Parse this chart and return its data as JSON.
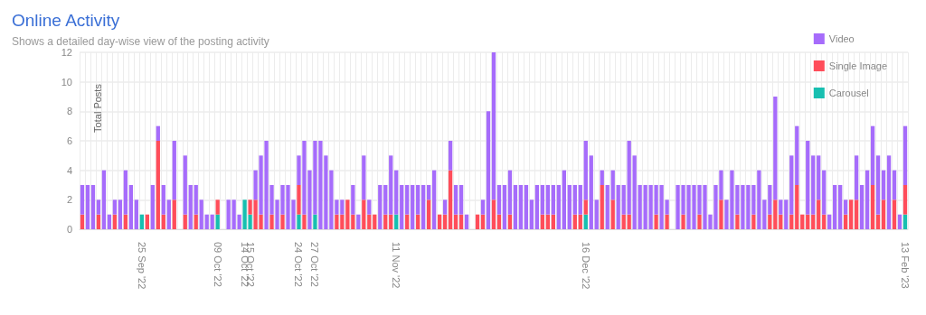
{
  "chart_data": {
    "type": "bar",
    "title": "Online Activity",
    "subtitle": "Shows a detailed day-wise view of the posting activity",
    "ylabel": "Total Posts",
    "stacked": true,
    "categories": [
      null,
      null,
      null,
      null,
      null,
      null,
      null,
      null,
      null,
      null,
      null,
      "25 Sep '22",
      null,
      null,
      null,
      null,
      null,
      null,
      null,
      null,
      null,
      null,
      null,
      null,
      null,
      "09 Oct '22",
      null,
      null,
      null,
      null,
      "14 Oct '22",
      "15 Oct '22",
      null,
      null,
      null,
      null,
      null,
      null,
      null,
      null,
      "24 Oct '22",
      null,
      null,
      "27 Oct '22",
      null,
      null,
      null,
      null,
      null,
      null,
      null,
      null,
      null,
      null,
      null,
      null,
      null,
      null,
      "11 Nov '22",
      null,
      null,
      null,
      null,
      null,
      null,
      null,
      null,
      null,
      null,
      null,
      null,
      null,
      null,
      null,
      null,
      null,
      null,
      null,
      null,
      null,
      null,
      null,
      null,
      null,
      null,
      null,
      null,
      null,
      null,
      null,
      null,
      null,
      null,
      "16 Dec '22",
      null,
      null,
      null,
      null,
      null,
      null,
      null,
      null,
      null,
      null,
      null,
      null,
      null,
      null,
      null,
      null,
      null,
      null,
      null,
      null,
      null,
      null,
      null,
      null,
      null,
      null,
      null,
      null,
      null,
      null,
      null,
      null,
      null,
      null,
      null,
      null,
      null,
      null,
      null,
      null,
      null,
      null,
      null,
      null,
      null,
      null,
      null,
      null,
      null,
      null,
      null,
      null,
      null,
      null,
      null,
      null,
      null,
      null,
      "13 Feb '23"
    ],
    "series": [
      {
        "name": "Carousel",
        "color": "#17bfb0",
        "values": [
          0,
          0,
          0,
          0,
          0,
          0,
          0,
          0,
          0,
          0,
          0,
          1,
          0,
          0,
          0,
          0,
          0,
          0,
          0,
          0,
          0,
          0,
          0,
          0,
          0,
          1,
          0,
          0,
          0,
          0,
          2,
          1,
          0,
          0,
          0,
          0,
          0,
          0,
          0,
          0,
          1,
          0,
          0,
          1,
          0,
          0,
          0,
          0,
          0,
          0,
          0,
          0,
          0,
          0,
          0,
          0,
          0,
          0,
          1,
          0,
          0,
          0,
          0,
          0,
          0,
          0,
          0,
          0,
          0,
          0,
          0,
          0,
          0,
          0,
          0,
          0,
          0,
          0,
          0,
          0,
          0,
          0,
          0,
          0,
          0,
          0,
          0,
          0,
          0,
          0,
          0,
          0,
          0,
          1,
          0,
          0,
          0,
          0,
          0,
          0,
          0,
          0,
          0,
          0,
          0,
          0,
          0,
          0,
          0,
          0,
          0,
          0,
          0,
          0,
          0,
          0,
          0,
          0,
          0,
          0,
          0,
          0,
          0,
          0,
          0,
          0,
          0,
          0,
          0,
          0,
          0,
          0,
          0,
          0,
          0,
          0,
          0,
          0,
          0,
          0,
          0,
          0,
          0,
          0,
          0,
          0,
          0,
          0,
          0,
          0,
          0,
          0,
          1
        ]
      },
      {
        "name": "Single Image",
        "color": "#ff4d5a",
        "values": [
          1,
          0,
          0,
          1,
          0,
          0,
          1,
          0,
          1,
          0,
          0,
          0,
          1,
          0,
          6,
          1,
          0,
          2,
          0,
          1,
          0,
          1,
          0,
          0,
          0,
          1,
          0,
          0,
          0,
          0,
          0,
          1,
          2,
          1,
          0,
          1,
          0,
          1,
          0,
          0,
          2,
          1,
          0,
          0,
          0,
          0,
          0,
          1,
          1,
          2,
          1,
          0,
          2,
          1,
          1,
          0,
          1,
          1,
          0,
          0,
          1,
          0,
          1,
          0,
          2,
          0,
          1,
          1,
          4,
          1,
          1,
          0,
          0,
          1,
          1,
          0,
          2,
          1,
          0,
          1,
          0,
          0,
          0,
          0,
          0,
          1,
          1,
          1,
          0,
          0,
          0,
          1,
          1,
          1,
          0,
          0,
          3,
          0,
          2,
          0,
          1,
          1,
          0,
          0,
          0,
          0,
          1,
          0,
          1,
          0,
          0,
          1,
          0,
          0,
          1,
          0,
          0,
          0,
          2,
          0,
          0,
          1,
          0,
          0,
          1,
          0,
          0,
          1,
          2,
          1,
          0,
          1,
          3,
          1,
          1,
          1,
          2,
          1,
          0,
          0,
          0,
          1,
          2,
          2,
          0,
          0,
          3,
          1,
          2,
          0,
          2,
          0,
          2
        ]
      },
      {
        "name": "Video",
        "color": "#a66cfb",
        "values": [
          2,
          3,
          3,
          1,
          4,
          1,
          1,
          2,
          3,
          3,
          2,
          0,
          0,
          3,
          1,
          2,
          2,
          4,
          0,
          4,
          3,
          2,
          2,
          1,
          1,
          0,
          0,
          2,
          2,
          1,
          0,
          0,
          2,
          4,
          6,
          2,
          2,
          2,
          3,
          2,
          2,
          5,
          4,
          5,
          6,
          5,
          4,
          1,
          1,
          0,
          2,
          1,
          3,
          1,
          0,
          3,
          2,
          4,
          3,
          3,
          2,
          3,
          2,
          3,
          1,
          4,
          0,
          1,
          2,
          2,
          2,
          1,
          0,
          0,
          1,
          8,
          10,
          2,
          3,
          3,
          3,
          3,
          3,
          2,
          3,
          2,
          2,
          2,
          3,
          4,
          3,
          2,
          2,
          4,
          5,
          2,
          1,
          3,
          2,
          3,
          2,
          5,
          5,
          3,
          3,
          3,
          2,
          3,
          1,
          0,
          3,
          2,
          3,
          3,
          2,
          3,
          1,
          3,
          2,
          2,
          4,
          2,
          3,
          3,
          2,
          4,
          2,
          2,
          7,
          1,
          2,
          4,
          4,
          0,
          5,
          4,
          3,
          3,
          1,
          3,
          3,
          1,
          0,
          3,
          3,
          4,
          4,
          4,
          2,
          5,
          2,
          1,
          4
        ]
      }
    ],
    "ylim": [
      0,
      12
    ],
    "yticks": [
      0,
      2,
      4,
      6,
      8,
      10,
      12
    ],
    "grid": true,
    "legend": "top right"
  }
}
